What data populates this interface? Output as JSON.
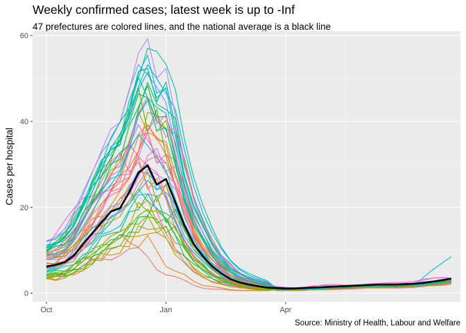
{
  "title": "Weekly confirmed cases; latest week is up to -Inf",
  "subtitle": "47 prefectures are colored lines, and the national average is a black line",
  "caption": "Source: Ministry of Health, Labour and Welfare",
  "chart_data": {
    "type": "line",
    "title": "Weekly confirmed cases; latest week is up to -Inf",
    "xlabel": "",
    "ylabel": "Cases per hospital",
    "x_ticks": [
      "Oct",
      "Jan",
      "Apr"
    ],
    "y_ticks": [
      "0",
      "20",
      "40",
      "60"
    ],
    "ylim": [
      -2,
      61
    ],
    "xlim_weeks": [
      -1.5,
      45
    ],
    "grid": true,
    "legend": "none",
    "national_average": {
      "color": "#000000",
      "x_weeks": [
        0,
        1,
        2,
        3,
        4,
        5,
        6,
        7,
        8,
        9,
        10,
        11,
        12,
        13,
        14,
        15,
        16,
        17,
        18,
        19,
        20,
        21,
        22,
        23,
        24,
        25,
        26,
        27,
        28,
        29,
        30,
        31,
        32,
        33,
        34,
        35,
        36,
        37,
        38,
        39,
        40,
        41,
        42,
        43,
        44
      ],
      "values": [
        6.2,
        6.6,
        7.2,
        8.8,
        11.5,
        14,
        16.5,
        19,
        19.8,
        23.5,
        28,
        29.8,
        25.3,
        26.6,
        21.2,
        15.8,
        11.5,
        8.6,
        6.3,
        4.6,
        3.3,
        2.5,
        2,
        1.6,
        1.3,
        1.2,
        1.1,
        1.1,
        1.2,
        1.3,
        1.4,
        1.5,
        1.6,
        1.7,
        1.8,
        1.9,
        2,
        2,
        2,
        2.1,
        2.2,
        2.4,
        2.7,
        3,
        3.4
      ]
    },
    "prefecture_colors": [
      "#F8766D",
      "#E88526",
      "#D39200",
      "#B79F00",
      "#93AA00",
      "#5EB300",
      "#00BA38",
      "#00BF74",
      "#00C19F",
      "#00BFC4",
      "#00B9E3",
      "#00ADFA",
      "#619CFF",
      "#AE87FF",
      "#DB72FB",
      "#F564E3",
      "#FF61C3",
      "#FF6C91"
    ],
    "prefecture_peak_scales": [
      0.35,
      0.45,
      0.5,
      0.55,
      0.6,
      0.65,
      0.7,
      0.75,
      0.8,
      0.85,
      0.9,
      0.95,
      1.0,
      1.05,
      1.1,
      1.15,
      1.2,
      1.25,
      1.3,
      1.35,
      1.4,
      1.45,
      1.5,
      1.55,
      1.6,
      1.65,
      1.7,
      1.75,
      1.8,
      1.85,
      1.9,
      1.95,
      1.5,
      1.4,
      1.3,
      1.2,
      1.1,
      1.0,
      0.9,
      0.8,
      0.7,
      0.6,
      1.6,
      1.8,
      2.0,
      1.45,
      1.25
    ],
    "prefecture_peak_shifts": [
      -5,
      -4,
      0,
      1,
      -1,
      0,
      2,
      0,
      -2,
      1,
      0,
      -1,
      0,
      1,
      2,
      -6,
      -3,
      0,
      1,
      0,
      -1,
      2,
      0,
      -2,
      0,
      1,
      -1,
      0,
      0,
      1,
      -1,
      0,
      0,
      2,
      -1,
      0,
      1,
      -2,
      0,
      -4,
      0,
      1,
      -1,
      0,
      1,
      0,
      -1
    ]
  }
}
